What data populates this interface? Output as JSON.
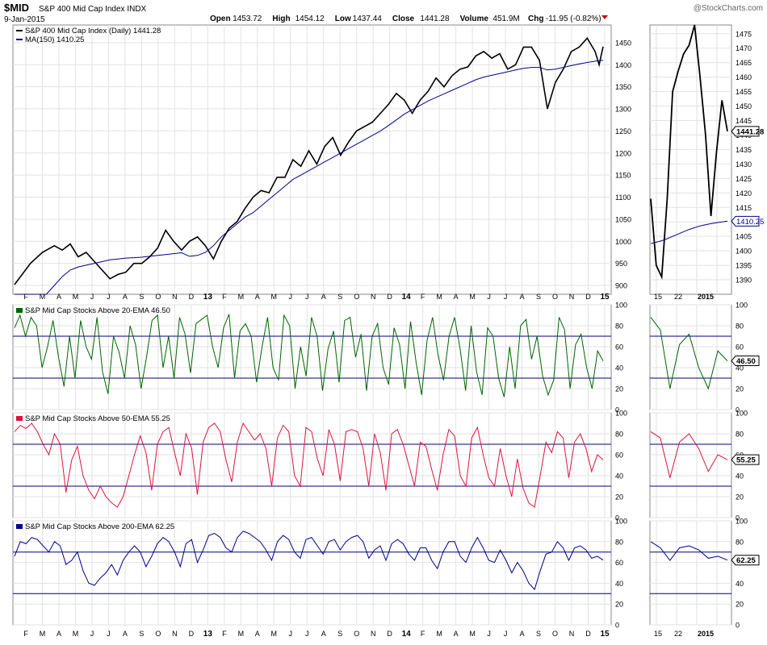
{
  "header": {
    "symbol": "$MID",
    "name": "S&P 400 Mid Cap Index",
    "exchange": "INDX",
    "date": "9-Jan-2015",
    "watermark": "@StockCharts.com",
    "quote": {
      "open_label": "Open",
      "open": "1453.72",
      "high_label": "High",
      "high": "1454.12",
      "low_label": "Low",
      "low": "1437.44",
      "close_label": "Close",
      "close": "1441.28",
      "volume_label": "Volume",
      "volume": "451.9M",
      "chg_label": "Chg",
      "chg": "-11.95 (-0.82%)"
    }
  },
  "chart_data": [
    {
      "id": "price",
      "type": "line",
      "legend": [
        {
          "name": "S&P 400 Mid Cap Index (Daily) 1441.28",
          "color": "#000000"
        },
        {
          "name": "MA(150) 1410.25",
          "color": "#00008b"
        }
      ],
      "ylim": [
        880,
        1490
      ],
      "y_ticks": [
        900,
        950,
        1000,
        1050,
        1100,
        1150,
        1200,
        1250,
        1300,
        1350,
        1400,
        1450
      ],
      "last_value_label": "1441.28",
      "series": [
        {
          "name": "S&P 400 Mid Cap Index",
          "color": "#000000",
          "points": [
            [
              0,
              902
            ],
            [
              2,
              950
            ],
            [
              3.5,
              975
            ],
            [
              5,
              990
            ],
            [
              6,
              980
            ],
            [
              7,
              994
            ],
            [
              8,
              965
            ],
            [
              9,
              975
            ],
            [
              10,
              955
            ],
            [
              11,
              935
            ],
            [
              12,
              915
            ],
            [
              13,
              925
            ],
            [
              14,
              930
            ],
            [
              15,
              950
            ],
            [
              16,
              950
            ],
            [
              17,
              965
            ],
            [
              18,
              985
            ],
            [
              19,
              1025
            ],
            [
              20,
              1000
            ],
            [
              21,
              980
            ],
            [
              22,
              1000
            ],
            [
              23,
              1010
            ],
            [
              24,
              990
            ],
            [
              25,
              960
            ],
            [
              26,
              1000
            ],
            [
              27,
              1030
            ],
            [
              28,
              1045
            ],
            [
              29,
              1075
            ],
            [
              30,
              1100
            ],
            [
              31,
              1115
            ],
            [
              32,
              1110
            ],
            [
              33,
              1145
            ],
            [
              34,
              1145
            ],
            [
              35,
              1185
            ],
            [
              36,
              1170
            ],
            [
              37,
              1205
            ],
            [
              38,
              1175
            ],
            [
              39,
              1215
            ],
            [
              40,
              1235
            ],
            [
              41,
              1195
            ],
            [
              42,
              1225
            ],
            [
              43,
              1250
            ],
            [
              44,
              1260
            ],
            [
              45,
              1270
            ],
            [
              46,
              1290
            ],
            [
              47,
              1310
            ],
            [
              48,
              1335
            ],
            [
              49,
              1320
            ],
            [
              50,
              1290
            ],
            [
              51,
              1320
            ],
            [
              52,
              1340
            ],
            [
              53,
              1370
            ],
            [
              54,
              1350
            ],
            [
              55,
              1375
            ],
            [
              56,
              1390
            ],
            [
              57,
              1395
            ],
            [
              58,
              1420
            ],
            [
              59,
              1430
            ],
            [
              60,
              1415
            ],
            [
              61,
              1425
            ],
            [
              62,
              1390
            ],
            [
              63,
              1400
            ],
            [
              64,
              1440
            ],
            [
              65,
              1440
            ],
            [
              66,
              1410
            ],
            [
              67,
              1300
            ],
            [
              68,
              1360
            ],
            [
              69,
              1390
            ],
            [
              70,
              1430
            ],
            [
              71,
              1440
            ],
            [
              72,
              1460
            ],
            [
              73,
              1430
            ],
            [
              73.5,
              1400
            ],
            [
              74,
              1441
            ]
          ]
        },
        {
          "name": "MA(150)",
          "color": "#00008b",
          "points": [
            [
              0,
              880
            ],
            [
              2,
              880
            ],
            [
              4,
              880
            ],
            [
              5,
              900
            ],
            [
              6,
              920
            ],
            [
              7,
              935
            ],
            [
              8,
              942
            ],
            [
              9,
              946
            ],
            [
              10,
              950
            ],
            [
              11,
              954
            ],
            [
              12,
              958
            ],
            [
              13,
              960
            ],
            [
              14,
              962
            ],
            [
              15,
              963
            ],
            [
              16,
              964
            ],
            [
              17,
              966
            ],
            [
              18,
              968
            ],
            [
              19,
              970
            ],
            [
              20,
              972
            ],
            [
              21,
              974
            ],
            [
              22,
              966
            ],
            [
              23,
              968
            ],
            [
              24,
              975
            ],
            [
              25,
              990
            ],
            [
              26,
              1010
            ],
            [
              27,
              1025
            ],
            [
              28,
              1040
            ],
            [
              29,
              1055
            ],
            [
              30,
              1065
            ],
            [
              31,
              1080
            ],
            [
              32,
              1095
            ],
            [
              33,
              1110
            ],
            [
              34,
              1125
            ],
            [
              35,
              1140
            ],
            [
              36,
              1150
            ],
            [
              37,
              1160
            ],
            [
              38,
              1170
            ],
            [
              39,
              1180
            ],
            [
              40,
              1190
            ],
            [
              41,
              1200
            ],
            [
              42,
              1210
            ],
            [
              43,
              1220
            ],
            [
              44,
              1230
            ],
            [
              45,
              1240
            ],
            [
              46,
              1250
            ],
            [
              47,
              1262
            ],
            [
              48,
              1275
            ],
            [
              49,
              1288
            ],
            [
              50,
              1298
            ],
            [
              51,
              1308
            ],
            [
              52,
              1318
            ],
            [
              53,
              1326
            ],
            [
              54,
              1334
            ],
            [
              55,
              1342
            ],
            [
              56,
              1350
            ],
            [
              57,
              1358
            ],
            [
              58,
              1366
            ],
            [
              59,
              1372
            ],
            [
              60,
              1376
            ],
            [
              61,
              1380
            ],
            [
              62,
              1384
            ],
            [
              63,
              1388
            ],
            [
              64,
              1392
            ],
            [
              65,
              1394
            ],
            [
              66,
              1394
            ],
            [
              67,
              1388
            ],
            [
              68,
              1390
            ],
            [
              69,
              1394
            ],
            [
              70,
              1398
            ],
            [
              71,
              1402
            ],
            [
              72,
              1405
            ],
            [
              73,
              1408
            ],
            [
              74,
              1410
            ]
          ]
        }
      ]
    },
    {
      "id": "above20",
      "type": "line",
      "title": "S&P Mid Cap Stocks Above 20-EMA 46.50",
      "color": "#006400",
      "ylim": [
        0,
        100
      ],
      "y_ticks": [
        0,
        20,
        40,
        60,
        80,
        100
      ],
      "reference_lines": [
        30,
        70
      ],
      "last_value_label": "46.50",
      "values": [
        78,
        90,
        70,
        88,
        80,
        40,
        60,
        85,
        50,
        22,
        70,
        30,
        85,
        60,
        48,
        88,
        36,
        15,
        70,
        55,
        30,
        80,
        62,
        20,
        50,
        85,
        90,
        40,
        70,
        30,
        88,
        72,
        35,
        82,
        86,
        90,
        60,
        40,
        78,
        91,
        30,
        75,
        82,
        70,
        26,
        60,
        88,
        40,
        28,
        90,
        80,
        20,
        60,
        32,
        88,
        70,
        18,
        58,
        75,
        26,
        85,
        88,
        50,
        72,
        18,
        70,
        82,
        40,
        24,
        78,
        62,
        20,
        84,
        45,
        14,
        66,
        88,
        52,
        28,
        70,
        88,
        58,
        18,
        80,
        36,
        14,
        78,
        70,
        30,
        12,
        60,
        20,
        80,
        86,
        48,
        70,
        32,
        14,
        28,
        88,
        76,
        20,
        62,
        72,
        40,
        20,
        56,
        46.5
      ]
    },
    {
      "id": "above50",
      "type": "line",
      "title": "S&P Mid Cap Stocks Above 50-EMA 55.25",
      "color": "#dc143c",
      "ylim": [
        0,
        100
      ],
      "y_ticks": [
        0,
        20,
        40,
        60,
        80,
        100
      ],
      "reference_lines": [
        30,
        70
      ],
      "last_value_label": "55.25",
      "values": [
        82,
        88,
        85,
        90,
        82,
        70,
        60,
        80,
        70,
        24,
        55,
        68,
        40,
        26,
        18,
        30,
        20,
        14,
        10,
        20,
        40,
        60,
        78,
        62,
        26,
        70,
        82,
        86,
        62,
        40,
        80,
        66,
        22,
        72,
        86,
        90,
        82,
        55,
        34,
        72,
        90,
        82,
        74,
        80,
        66,
        30,
        76,
        88,
        82,
        40,
        30,
        86,
        82,
        56,
        40,
        84,
        70,
        35,
        82,
        84,
        82,
        66,
        30,
        80,
        62,
        26,
        80,
        84,
        70,
        50,
        30,
        72,
        68,
        46,
        26,
        60,
        84,
        78,
        40,
        30,
        76,
        86,
        60,
        38,
        30,
        66,
        40,
        20,
        56,
        28,
        14,
        10,
        40,
        72,
        62,
        82,
        76,
        38,
        72,
        80,
        66,
        44,
        60,
        55.25
      ]
    },
    {
      "id": "above200",
      "type": "line",
      "title": "S&P Mid Cap Stocks Above 200-EMA 62.25",
      "color": "#00008b",
      "ylim": [
        0,
        100
      ],
      "y_ticks": [
        0,
        20,
        40,
        60,
        80,
        100
      ],
      "reference_lines": [
        30,
        70
      ],
      "last_value_label": "62.25",
      "values": [
        66,
        80,
        78,
        84,
        82,
        76,
        70,
        80,
        76,
        58,
        62,
        70,
        52,
        40,
        38,
        45,
        50,
        58,
        48,
        62,
        70,
        76,
        70,
        56,
        66,
        78,
        84,
        80,
        70,
        56,
        78,
        82,
        60,
        72,
        86,
        88,
        84,
        74,
        70,
        84,
        90,
        88,
        84,
        80,
        72,
        62,
        80,
        86,
        82,
        70,
        64,
        82,
        84,
        76,
        68,
        80,
        82,
        72,
        80,
        84,
        86,
        80,
        64,
        72,
        76,
        62,
        78,
        82,
        78,
        68,
        62,
        74,
        74,
        62,
        54,
        70,
        80,
        80,
        66,
        60,
        74,
        84,
        74,
        62,
        60,
        72,
        62,
        50,
        60,
        52,
        40,
        34,
        52,
        68,
        70,
        80,
        74,
        62,
        74,
        76,
        72,
        64,
        66,
        62.25
      ]
    },
    {
      "id": "x_axis",
      "type": "axis",
      "tick_labels": [
        "F",
        "M",
        "A",
        "M",
        "J",
        "J",
        "A",
        "S",
        "O",
        "N",
        "D",
        "13",
        "F",
        "M",
        "A",
        "M",
        "J",
        "J",
        "A",
        "S",
        "O",
        "N",
        "D",
        "14",
        "F",
        "M",
        "A",
        "M",
        "J",
        "J",
        "A",
        "S",
        "O",
        "N",
        "D",
        "15"
      ],
      "zoom_tick_labels": [
        "15",
        "22",
        "2015"
      ]
    }
  ]
}
